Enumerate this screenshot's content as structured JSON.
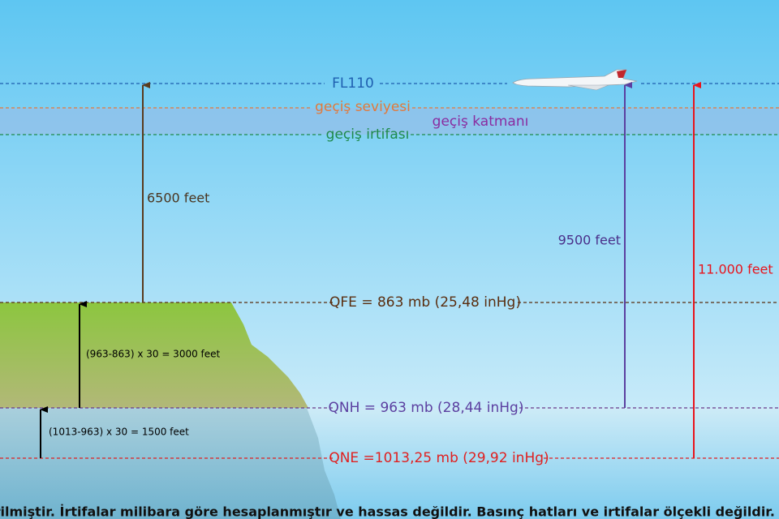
{
  "levels": {
    "fl": "FL110",
    "transition_level": "geçiş seviyesi",
    "transition_layer": "geçiş katmanı",
    "transition_altitude": "geçiş irtifası",
    "qfe": "QFE = 863 mb (25,48 inHg)",
    "qnh": "QNH = 963 mb (28,44 inHg)",
    "qne": "QNE =1013,25 mb (29,92 inHg)"
  },
  "arrows": {
    "qfe_to_fl": "6500 feet",
    "qnh_to_qfe": "(963-863) x 30 = 3000 feet",
    "qne_to_qnh": "(1013-963) x 30 = 1500 feet",
    "qnh_to_fl": "9500 feet",
    "qne_to_fl": "11.000 feet"
  },
  "footnote": "* QNH ve QFE değerleri örnek olarak verilmiştir. İrtifalar milibara göre hesaplanmıştır ve hassas değildir. Basınç hatları ve irtifalar ölçekli değildir."
}
